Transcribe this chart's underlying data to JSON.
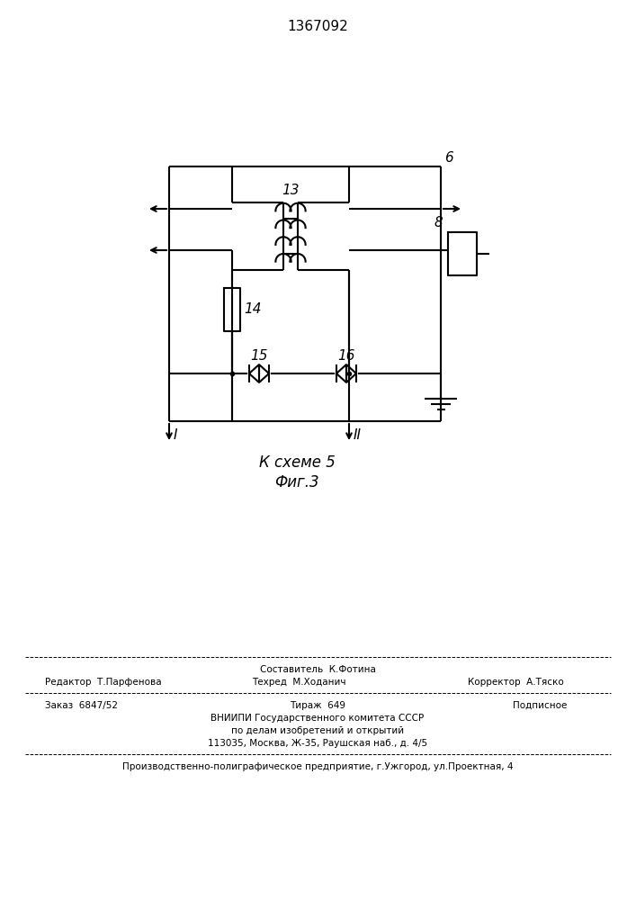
{
  "title": "1367092",
  "fig_caption_line1": "К схеме 5",
  "fig_caption_line2": "Фиг.3",
  "footer_line1_center_top": "Составитель  К.Фотина",
  "footer_line1_left": "Редактор  Т.Парфенова",
  "footer_line1_center_bot": "Техред  М.Ходанич",
  "footer_line1_right": "Корректор  А.Тяско",
  "footer_line2_left": "Заказ  6847/52",
  "footer_line2_center": "Тираж  649",
  "footer_line2_right": "Подписное",
  "footer_line3": "ВНИИПИ Государственного комитета СССР",
  "footer_line4": "по делам изобретений и открытий",
  "footer_line5": "113035, Москва, Ж-35, Раушская наб., д. 4/5",
  "footer_line6": "Производственно-полиграфическое предприятие, г.Ужгород, ул.Проектная, 4",
  "bg_color": "#ffffff",
  "line_color": "#000000"
}
